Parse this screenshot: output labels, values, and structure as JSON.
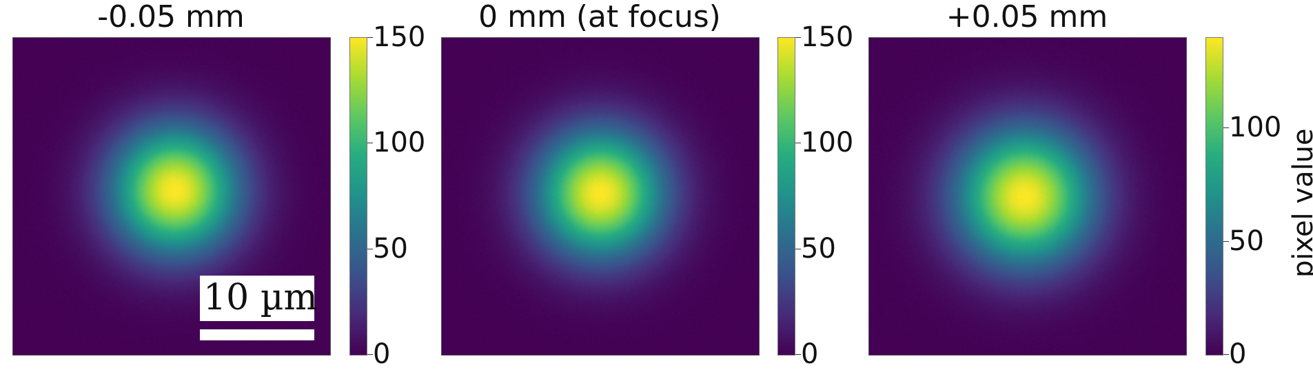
{
  "chart_data": [
    {
      "type": "heatmap",
      "title": "-0.05 mm",
      "colormap": "viridis",
      "colorbar": {
        "range": [
          0,
          150
        ],
        "ticks": [
          "0",
          "50",
          "100",
          "150"
        ],
        "label": ""
      },
      "peak_value": 150,
      "spot_center": [
        0.51,
        0.48
      ],
      "spot_sigma": 0.14,
      "scale_bar": {
        "label": "10 µm"
      }
    },
    {
      "type": "heatmap",
      "title": "0 mm (at focus)",
      "colormap": "viridis",
      "colorbar": {
        "range": [
          0,
          150
        ],
        "ticks": [
          "0",
          "50",
          "100",
          "150"
        ],
        "label": ""
      },
      "peak_value": 150,
      "spot_center": [
        0.5,
        0.49
      ],
      "spot_sigma": 0.14
    },
    {
      "type": "heatmap",
      "title": "+0.05 mm",
      "colormap": "viridis",
      "colorbar": {
        "range": [
          0,
          140
        ],
        "ticks": [
          "0",
          "50",
          "100"
        ],
        "label": "pixel value"
      },
      "peak_value": 140,
      "spot_center": [
        0.49,
        0.5
      ],
      "spot_sigma": 0.15
    }
  ],
  "colors": {
    "viridis_low": "#440154",
    "viridis_mid": "#21918c",
    "viridis_high": "#fde725"
  }
}
